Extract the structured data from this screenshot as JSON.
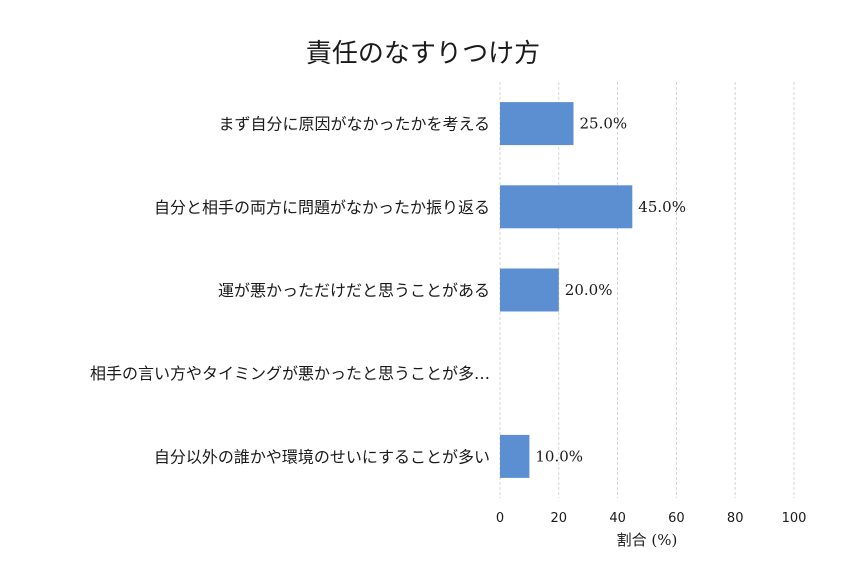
{
  "chart_data": {
    "type": "bar",
    "orientation": "horizontal",
    "title": "責任のなすりつけ方",
    "xlabel": "割合 (%)",
    "ylabel": "",
    "categories": [
      "まず自分に原因がなかったかを考える",
      "自分と相手の両方に問題がなかったか振り返る",
      "運が悪かっただけだと思うことがある",
      "相手の言い方やタイミングが悪かったと思うことが多…",
      "自分以外の誰かや環境のせいにすることが多い"
    ],
    "values": [
      25.0,
      45.0,
      20.0,
      0.0,
      10.0
    ],
    "value_labels": [
      "25.0%",
      "45.0%",
      "20.0%",
      "",
      "10.0%"
    ],
    "xlim": [
      0,
      100
    ],
    "xticks": [
      0,
      20,
      40,
      60,
      80,
      100
    ],
    "grid": true,
    "bar_color": "#5b8fd1",
    "grid_color": "#cccccc"
  }
}
